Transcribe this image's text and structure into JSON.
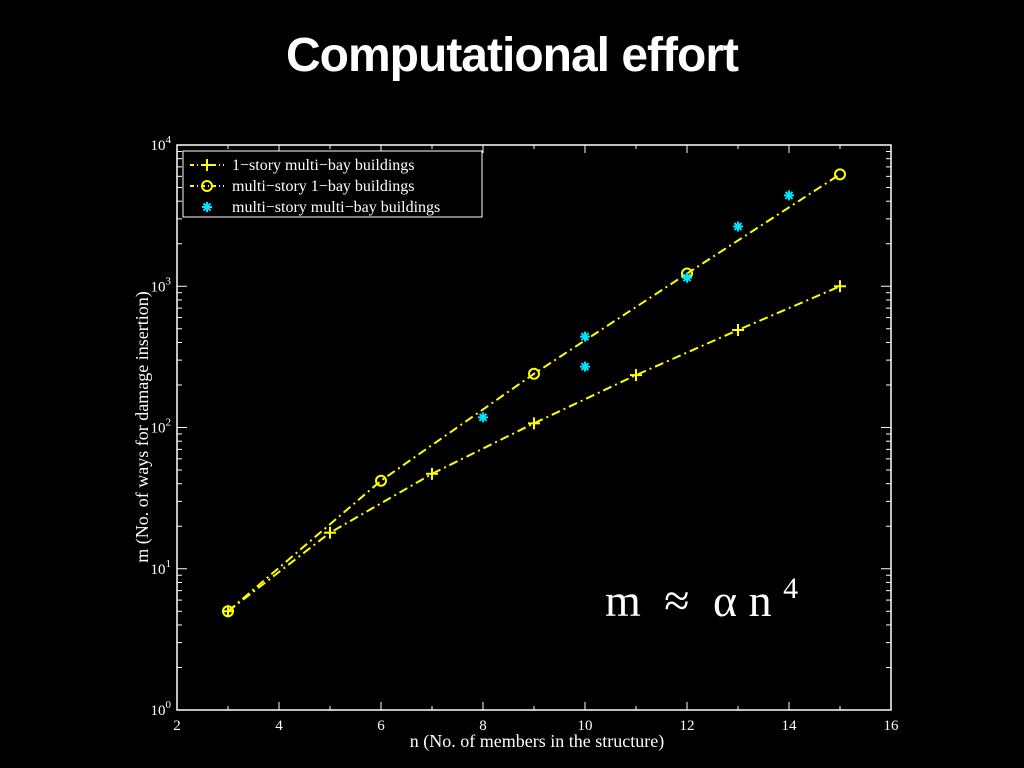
{
  "page": {
    "title": "Computational effort"
  },
  "chart_data": {
    "type": "scatter",
    "xlabel": "n (No. of members in the structure)",
    "ylabel": "m (No. of ways for damage insertion)",
    "xlim": [
      2,
      16
    ],
    "ylim": [
      1,
      10000
    ],
    "yscale": "log",
    "x_ticks": [
      2,
      4,
      6,
      8,
      10,
      12,
      14,
      16
    ],
    "y_ticks": [
      {
        "value": 1,
        "base": "10",
        "exp": "0"
      },
      {
        "value": 10,
        "base": "10",
        "exp": "1"
      },
      {
        "value": 100,
        "base": "10",
        "exp": "2"
      },
      {
        "value": 1000,
        "base": "10",
        "exp": "3"
      },
      {
        "value": 10000,
        "base": "10",
        "exp": "4"
      }
    ],
    "grid": false,
    "legend_position": "top-left",
    "series": [
      {
        "name": "1−story multi−bay buildings",
        "marker": "plus",
        "color": "#ffff00",
        "line": "dash-dot",
        "points": [
          [
            3,
            5
          ],
          [
            5,
            18
          ],
          [
            7,
            47
          ],
          [
            9,
            107
          ],
          [
            11,
            235
          ],
          [
            13,
            490
          ],
          [
            15,
            1000
          ]
        ]
      },
      {
        "name": "multi−story 1−bay buildings",
        "marker": "circle",
        "color": "#ffff00",
        "line": "dash-dot",
        "points": [
          [
            3,
            5
          ],
          [
            6,
            42
          ],
          [
            9,
            240
          ],
          [
            12,
            1230
          ],
          [
            15,
            6200
          ]
        ]
      },
      {
        "name": "multi−story multi−bay buildings",
        "marker": "star",
        "color": "#00e5ff",
        "line": "none",
        "points": [
          [
            8,
            118
          ],
          [
            10,
            270
          ],
          [
            10,
            440
          ],
          [
            12,
            1150
          ],
          [
            13,
            2650
          ],
          [
            14,
            4400
          ]
        ]
      }
    ],
    "annotation": {
      "lhs": "m",
      "rel": "≈",
      "alpha": "α",
      "var": "n",
      "exp": "4"
    }
  }
}
